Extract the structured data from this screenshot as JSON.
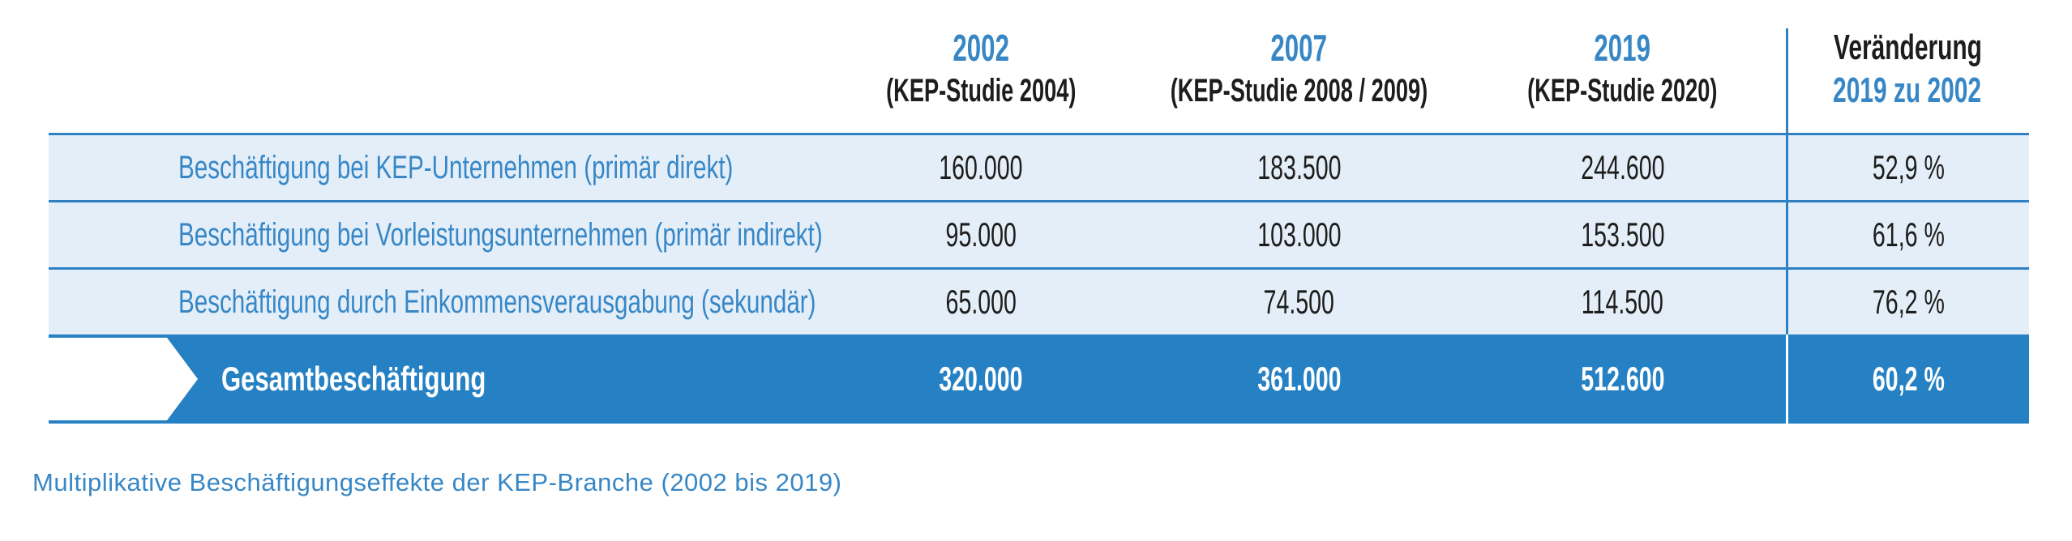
{
  "colors": {
    "accent_blue": "#2e80c2",
    "banner_blue": "#2681c4",
    "text_blue": "#3787c6",
    "row_bg": "#e4eef9",
    "text_black": "#1d1d1b",
    "banner_text": "#ffffff"
  },
  "table": {
    "columns": [
      {
        "year": "2002",
        "study": "(KEP-Studie 2004)"
      },
      {
        "year": "2007",
        "study": "(KEP-Studie 2008 / 2009)"
      },
      {
        "year": "2019",
        "study": "(KEP-Studie 2020)"
      }
    ],
    "change_header": {
      "line1": "Veränderung",
      "line2": "2019 zu 2002"
    },
    "rows": [
      {
        "label": "Beschäftigung bei KEP-Unternehmen (primär direkt)",
        "v2002": "160.000",
        "v2007": "183.500",
        "v2019": "244.600",
        "change": "52,9 %"
      },
      {
        "label": "Beschäftigung bei Vorleistungsunternehmen (primär indirekt)",
        "v2002": "95.000",
        "v2007": "103.000",
        "v2019": "153.500",
        "change": "61,6 %"
      },
      {
        "label": "Beschäftigung durch Einkommensverausgabung (sekundär)",
        "v2002": "65.000",
        "v2007": "74.500",
        "v2019": "114.500",
        "change": "76,2 %"
      }
    ],
    "total_row": {
      "label": "Gesamtbeschäftigung",
      "v2002": "320.000",
      "v2007": "361.000",
      "v2019": "512.600",
      "change": "60,2 %"
    }
  },
  "caption": "Multiplikative Beschäftigungseffekte der KEP-Branche (2002 bis 2019)",
  "chart_data": {
    "type": "table",
    "title": "Multiplikative Beschäftigungseffekte der KEP-Branche (2002 bis 2019)",
    "columns": [
      "2002 (KEP-Studie 2004)",
      "2007 (KEP-Studie 2008 / 2009)",
      "2019 (KEP-Studie 2020)",
      "Veränderung 2019 zu 2002"
    ],
    "series": [
      {
        "name": "Beschäftigung bei KEP-Unternehmen (primär direkt)",
        "values": [
          160000,
          183500,
          244600
        ],
        "change_pct": 52.9
      },
      {
        "name": "Beschäftigung bei Vorleistungsunternehmen (primär indirekt)",
        "values": [
          95000,
          103000,
          153500
        ],
        "change_pct": 61.6
      },
      {
        "name": "Beschäftigung durch Einkommensverausgabung (sekundär)",
        "values": [
          65000,
          74500,
          114500
        ],
        "change_pct": 76.2
      },
      {
        "name": "Gesamtbeschäftigung",
        "values": [
          320000,
          361000,
          512600
        ],
        "change_pct": 60.2
      }
    ]
  }
}
